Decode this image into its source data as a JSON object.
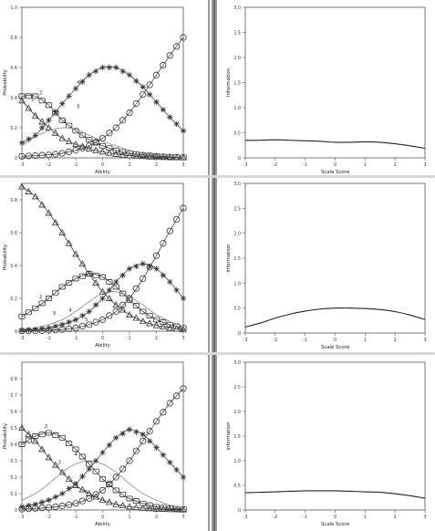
{
  "chart_data": [
    {
      "type": "line",
      "panel": "item-1-category-response",
      "xlabel": "Ability",
      "ylabel": "Probability",
      "xlim": [
        -3,
        3
      ],
      "ylim": [
        0,
        1.0
      ],
      "xticks": [
        -3,
        -2,
        -1,
        0,
        1,
        2,
        3
      ],
      "yticks": [
        "0",
        "0.2",
        "0.4",
        "0.6",
        "0.8",
        "1.0"
      ],
      "ytick_values": [
        0,
        0.2,
        0.4,
        0.6,
        0.8,
        1.0
      ],
      "series": [
        {
          "name": "1",
          "marker": "triangle",
          "x": [
            -3,
            -2.5,
            -2,
            -1.5,
            -1,
            -0.5,
            0,
            0.5,
            1,
            1.5,
            2,
            2.5,
            3
          ],
          "y": [
            0.38,
            0.28,
            0.2,
            0.13,
            0.09,
            0.06,
            0.04,
            0.025,
            0.015,
            0.01,
            0.005,
            0.003,
            0.002
          ]
        },
        {
          "name": "2",
          "marker": "square",
          "x": [
            -3,
            -2.5,
            -2,
            -1.5,
            -1,
            -0.5,
            0,
            0.5,
            1,
            1.5,
            2,
            2.5,
            3
          ],
          "y": [
            0.41,
            0.41,
            0.35,
            0.25,
            0.18,
            0.12,
            0.08,
            0.05,
            0.03,
            0.02,
            0.012,
            0.007,
            0.004
          ]
        },
        {
          "name": "3",
          "marker": "none",
          "x": [
            -3,
            -2.5,
            -2,
            -1.5,
            -1,
            -0.5,
            0,
            0.5,
            1,
            1.5,
            2,
            2.5,
            3
          ],
          "y": [
            0.08,
            0.14,
            0.18,
            0.2,
            0.19,
            0.15,
            0.11,
            0.08,
            0.05,
            0.03,
            0.02,
            0.01,
            0.005
          ]
        },
        {
          "name": "4",
          "marker": "star",
          "x": [
            -3,
            -2.5,
            -2,
            -1.5,
            -1,
            -0.5,
            0,
            0.5,
            1,
            1.5,
            2,
            2.5,
            3
          ],
          "y": [
            0.1,
            0.15,
            0.25,
            0.36,
            0.46,
            0.55,
            0.6,
            0.6,
            0.55,
            0.47,
            0.37,
            0.27,
            0.18
          ]
        },
        {
          "name": "5",
          "marker": "circle",
          "x": [
            -3,
            -2.5,
            -2,
            -1.5,
            -1,
            -0.5,
            0,
            0.5,
            1,
            1.5,
            2,
            2.5,
            3
          ],
          "y": [
            0.01,
            0.015,
            0.02,
            0.03,
            0.05,
            0.08,
            0.13,
            0.2,
            0.3,
            0.42,
            0.55,
            0.68,
            0.8
          ]
        }
      ],
      "curve_labels": [
        {
          "text": "1",
          "x": -2.6,
          "y": 0.38
        },
        {
          "text": "2",
          "x": -2.3,
          "y": 0.42
        },
        {
          "text": "3",
          "x": -1.4,
          "y": 0.23
        },
        {
          "text": "4",
          "x": -0.9,
          "y": 0.49
        },
        {
          "text": "5",
          "x": -0.9,
          "y": 0.33
        }
      ]
    },
    {
      "type": "line",
      "panel": "item-1-information",
      "xlabel": "Scale Score",
      "ylabel": "Information",
      "xlim": [
        -3,
        3
      ],
      "ylim": [
        0,
        3.0
      ],
      "xticks": [
        -3,
        -2,
        -1,
        0,
        1,
        2,
        3
      ],
      "yticks": [
        "0",
        "0.5",
        "1.0",
        "1.5",
        "2.0",
        "2.5",
        "3.0"
      ],
      "ytick_values": [
        0,
        0.5,
        1.0,
        1.5,
        2.0,
        2.5,
        3.0
      ],
      "series": [
        {
          "x": [
            -3,
            -2.5,
            -2,
            -1.5,
            -1,
            -0.5,
            0,
            0.5,
            1,
            1.5,
            2,
            2.5,
            3
          ],
          "y": [
            0.35,
            0.35,
            0.36,
            0.35,
            0.34,
            0.33,
            0.31,
            0.31,
            0.32,
            0.31,
            0.28,
            0.24,
            0.19
          ]
        }
      ]
    },
    {
      "type": "line",
      "panel": "item-2-category-response",
      "xlabel": "Ability",
      "ylabel": "Probability",
      "xlim": [
        -3,
        3
      ],
      "ylim": [
        0,
        0.9
      ],
      "xticks": [
        -3,
        -2,
        -1,
        0,
        1,
        2,
        3
      ],
      "yticks": [
        "0",
        "0.2",
        "0.4",
        "0.6",
        "0.8"
      ],
      "ytick_values": [
        0,
        0.2,
        0.4,
        0.6,
        0.8
      ],
      "series": [
        {
          "name": "1",
          "marker": "triangle",
          "x": [
            -3,
            -2.5,
            -2,
            -1.5,
            -1,
            -0.5,
            0,
            0.5,
            1,
            1.5,
            2,
            2.5,
            3
          ],
          "y": [
            0.88,
            0.82,
            0.72,
            0.6,
            0.47,
            0.35,
            0.24,
            0.16,
            0.1,
            0.06,
            0.035,
            0.02,
            0.01
          ]
        },
        {
          "name": "2",
          "marker": "square",
          "x": [
            -3,
            -2.5,
            -2,
            -1.5,
            -1,
            -0.5,
            0,
            0.5,
            1,
            1.5,
            2,
            2.5,
            3
          ],
          "y": [
            0.09,
            0.14,
            0.2,
            0.27,
            0.32,
            0.35,
            0.33,
            0.27,
            0.19,
            0.12,
            0.07,
            0.04,
            0.02
          ]
        },
        {
          "name": "3",
          "marker": "none",
          "x": [
            -3,
            -2.5,
            -2,
            -1.5,
            -1,
            -0.5,
            0,
            0.5,
            1,
            1.5,
            2,
            2.5,
            3
          ],
          "y": [
            0.01,
            0.02,
            0.04,
            0.07,
            0.12,
            0.18,
            0.23,
            0.24,
            0.21,
            0.16,
            0.1,
            0.06,
            0.03
          ]
        },
        {
          "name": "4",
          "marker": "star",
          "x": [
            -3,
            -2.5,
            -2,
            -1.5,
            -1,
            -0.5,
            0,
            0.5,
            1,
            1.5,
            2,
            2.5,
            3
          ],
          "y": [
            0.005,
            0.01,
            0.02,
            0.04,
            0.07,
            0.12,
            0.2,
            0.3,
            0.38,
            0.41,
            0.38,
            0.3,
            0.2
          ]
        },
        {
          "name": "5",
          "marker": "circle",
          "x": [
            -3,
            -2.5,
            -2,
            -1.5,
            -1,
            -0.5,
            0,
            0.5,
            1,
            1.5,
            2,
            2.5,
            3
          ],
          "y": [
            0.001,
            0.002,
            0.005,
            0.01,
            0.02,
            0.04,
            0.07,
            0.12,
            0.2,
            0.32,
            0.46,
            0.61,
            0.75
          ]
        }
      ],
      "curve_labels": [
        {
          "text": "2",
          "x": -2.3,
          "y": 0.2
        },
        {
          "text": "3",
          "x": -1.8,
          "y": 0.1
        },
        {
          "text": "4",
          "x": -1.2,
          "y": 0.12
        },
        {
          "text": "5",
          "x": -0.6,
          "y": 0.06
        }
      ]
    },
    {
      "type": "line",
      "panel": "item-2-information",
      "xlabel": "Scale Score",
      "ylabel": "Information",
      "xlim": [
        -3,
        3
      ],
      "ylim": [
        0,
        3.0
      ],
      "xticks": [
        -3,
        -2,
        -1,
        0,
        1,
        2,
        3
      ],
      "yticks": [
        "0",
        "0.5",
        "1.0",
        "1.5",
        "2.0",
        "2.5",
        "3.0"
      ],
      "ytick_values": [
        0,
        0.5,
        1.0,
        1.5,
        2.0,
        2.5,
        3.0
      ],
      "series": [
        {
          "x": [
            -3,
            -2.5,
            -2,
            -1.5,
            -1,
            -0.5,
            0,
            0.5,
            1,
            1.5,
            2,
            2.5,
            3
          ],
          "y": [
            0.12,
            0.2,
            0.3,
            0.38,
            0.44,
            0.48,
            0.5,
            0.5,
            0.49,
            0.47,
            0.43,
            0.36,
            0.27
          ]
        }
      ]
    },
    {
      "type": "line",
      "panel": "item-3-category-response",
      "xlabel": "Ability",
      "ylabel": "Probability",
      "xlim": [
        -3,
        3
      ],
      "ylim": [
        0,
        0.9
      ],
      "xticks": [
        -3,
        -2,
        -1,
        0,
        1,
        2,
        3
      ],
      "yticks": [
        "0",
        "0.1",
        "0.2",
        "0.3",
        "0.4",
        "0.5",
        "0.6",
        "0.7",
        "0.8"
      ],
      "ytick_values": [
        0,
        0.1,
        0.2,
        0.3,
        0.4,
        0.5,
        0.6,
        0.7,
        0.8
      ],
      "series": [
        {
          "name": "1",
          "marker": "triangle",
          "x": [
            -3,
            -2.5,
            -2,
            -1.5,
            -1,
            -0.5,
            0,
            0.5,
            1,
            1.5,
            2,
            2.5,
            3
          ],
          "y": [
            0.5,
            0.42,
            0.32,
            0.23,
            0.15,
            0.1,
            0.06,
            0.035,
            0.02,
            0.012,
            0.007,
            0.004,
            0.002
          ]
        },
        {
          "name": "2",
          "marker": "square",
          "x": [
            -3,
            -2.5,
            -2,
            -1.5,
            -1,
            -0.5,
            0,
            0.5,
            1,
            1.5,
            2,
            2.5,
            3
          ],
          "y": [
            0.4,
            0.45,
            0.47,
            0.44,
            0.37,
            0.28,
            0.19,
            0.12,
            0.07,
            0.04,
            0.02,
            0.01,
            0.005
          ]
        },
        {
          "name": "3",
          "marker": "none",
          "x": [
            -3,
            -2.5,
            -2,
            -1.5,
            -1,
            -0.5,
            0,
            0.5,
            1,
            1.5,
            2,
            2.5,
            3
          ],
          "y": [
            0.06,
            0.1,
            0.16,
            0.23,
            0.28,
            0.3,
            0.28,
            0.23,
            0.16,
            0.1,
            0.06,
            0.03,
            0.015
          ]
        },
        {
          "name": "4",
          "marker": "star",
          "x": [
            -3,
            -2.5,
            -2,
            -1.5,
            -1,
            -0.5,
            0,
            0.5,
            1,
            1.5,
            2,
            2.5,
            3
          ],
          "y": [
            0.02,
            0.035,
            0.06,
            0.1,
            0.16,
            0.25,
            0.35,
            0.44,
            0.49,
            0.46,
            0.38,
            0.29,
            0.2
          ]
        },
        {
          "name": "5",
          "marker": "circle",
          "x": [
            -3,
            -2.5,
            -2,
            -1.5,
            -1,
            -0.5,
            0,
            0.5,
            1,
            1.5,
            2,
            2.5,
            3
          ],
          "y": [
            0.005,
            0.01,
            0.015,
            0.025,
            0.04,
            0.07,
            0.12,
            0.2,
            0.3,
            0.42,
            0.54,
            0.65,
            0.74
          ]
        }
      ],
      "curve_labels": [
        {
          "text": "2",
          "x": -2.1,
          "y": 0.5
        },
        {
          "text": "3",
          "x": -1.6,
          "y": 0.28
        },
        {
          "text": "4",
          "x": -1.0,
          "y": 0.33
        },
        {
          "text": "5",
          "x": -0.6,
          "y": 0.1
        }
      ]
    },
    {
      "type": "line",
      "panel": "item-3-information",
      "xlabel": "Scale Score",
      "ylabel": "Information",
      "xlim": [
        -3,
        3
      ],
      "ylim": [
        0,
        3.0
      ],
      "xticks": [
        -3,
        -2,
        -1,
        0,
        1,
        2,
        3
      ],
      "yticks": [
        "0",
        "0.5",
        "1.0",
        "1.5",
        "2.0",
        "2.5",
        "3.0"
      ],
      "ytick_values": [
        0,
        0.5,
        1.0,
        1.5,
        2.0,
        2.5,
        3.0
      ],
      "series": [
        {
          "x": [
            -3,
            -2.5,
            -2,
            -1.5,
            -1,
            -0.5,
            0,
            0.5,
            1,
            1.5,
            2,
            2.5,
            3
          ],
          "y": [
            0.35,
            0.36,
            0.37,
            0.38,
            0.39,
            0.39,
            0.39,
            0.38,
            0.37,
            0.36,
            0.33,
            0.29,
            0.24
          ]
        }
      ]
    }
  ]
}
